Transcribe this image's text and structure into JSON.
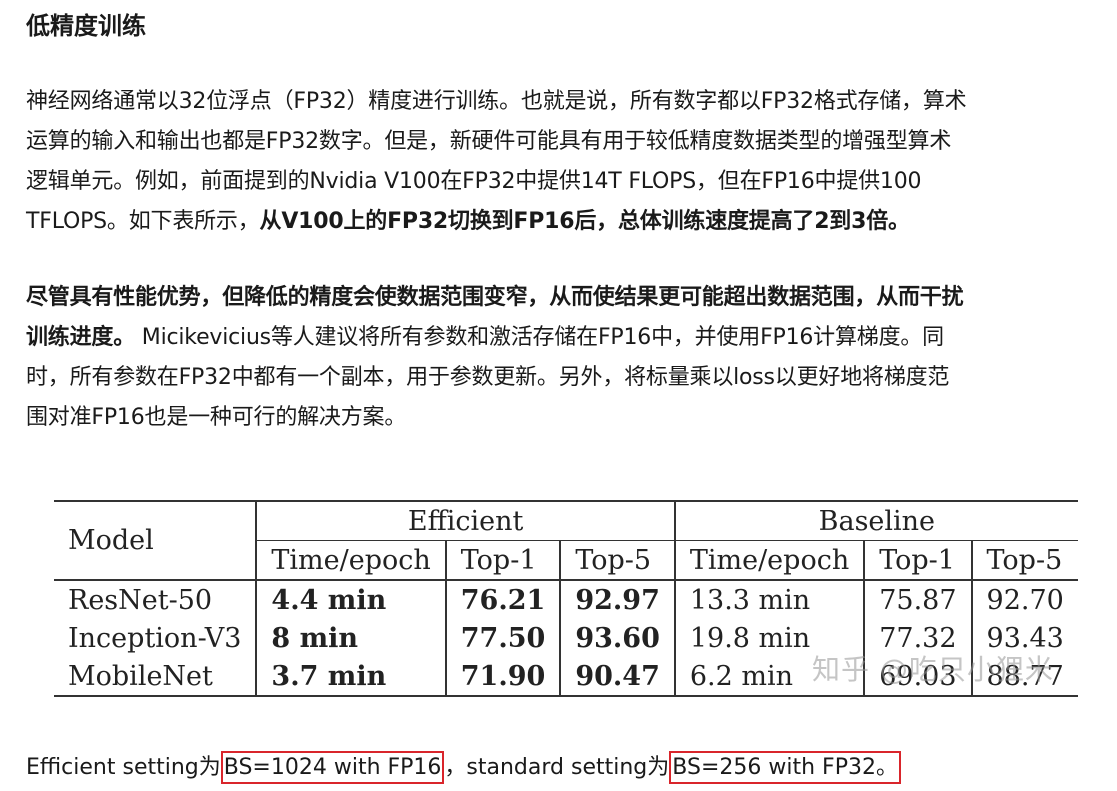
{
  "heading": "低精度训练",
  "para1": {
    "line1": "神经网络通常以32位浮点（FP32）精度进行训练。也就是说，所有数字都以FP32格式存储，算术",
    "line2": "运算的输入和输出也都是FP32数字。但是，新硬件可能具有用于较低精度数据类型的增强型算术",
    "line3": "逻辑单元。例如，前面提到的Nvidia V100在FP32中提供14T FLOPS，但在FP16中提供100",
    "line4_plain": "TFLOPS。如下表所示，",
    "line4_bold": "从V100上的FP32切换到FP16后，总体训练速度提高了2到3倍。"
  },
  "para2": {
    "line1_bold": "尽管具有性能优势，但降低的精度会使数据范围变窄，从而使结果更可能超出数据范围，从而干扰",
    "line2_bold": "训练进度。",
    "line2_plain": " Micikevicius等人建议将所有参数和激活存储在FP16中，并使用FP16计算梯度。同",
    "line3": "时，所有参数在FP32中都有一个副本，用于参数更新。另外，将标量乘以loss以更好地将梯度范",
    "line4": "围对准FP16也是一种可行的解决方案。"
  },
  "table": {
    "model_header": "Model",
    "group_efficient": "Efficient",
    "group_baseline": "Baseline",
    "subheaders": [
      "Time/epoch",
      "Top-1",
      "Top-5",
      "Time/epoch",
      "Top-1",
      "Top-5"
    ],
    "rows": [
      {
        "model": "ResNet-50",
        "cells": [
          "4.4 min",
          "76.21",
          "92.97",
          "13.3 min",
          "75.87",
          "92.70"
        ]
      },
      {
        "model": "Inception-V3",
        "cells": [
          "8 min",
          "77.50",
          "93.60",
          "19.8 min",
          "77.32",
          "93.43"
        ]
      },
      {
        "model": "MobileNet",
        "cells": [
          "3.7 min",
          "71.90",
          "90.47",
          "6.2 min",
          "69.03",
          "88.77"
        ]
      }
    ]
  },
  "watermark": "知乎 @吃只小狸米",
  "footer": {
    "part1": "Efficient setting为",
    "box1": "BS=1024 with FP16",
    "part2": "，standard setting为",
    "box2": "BS=256 with FP32",
    "part3": "。"
  },
  "colors": {
    "text": "#1a1a1a",
    "box_outline": "#d9252b",
    "watermark": "#969696"
  }
}
